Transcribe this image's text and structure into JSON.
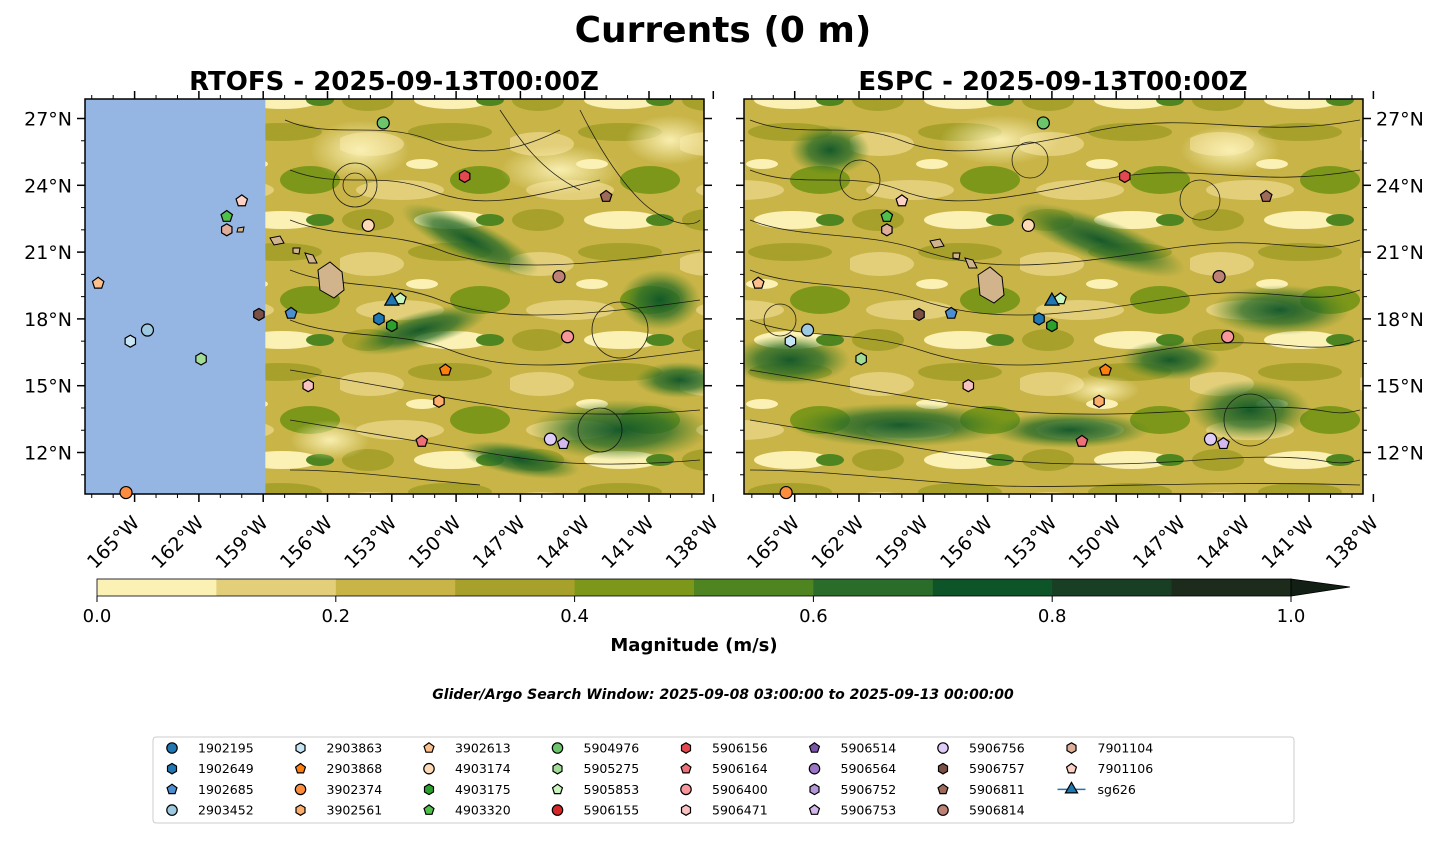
{
  "chart_data": {
    "type": "map",
    "title": "Currents (0 m)",
    "panels": [
      {
        "id": "rtofs",
        "title": "RTOFS - 2025-09-13T00:00Z"
      },
      {
        "id": "espc",
        "title": "ESPC - 2025-09-13T00:00Z"
      }
    ],
    "lon_range": [
      -168,
      -138
    ],
    "lat_range": [
      10,
      28
    ],
    "lat_ticks": [
      {
        "value": 27,
        "label": "27°N"
      },
      {
        "value": 24,
        "label": "24°N"
      },
      {
        "value": 21,
        "label": "21°N"
      },
      {
        "value": 18,
        "label": "18°N"
      },
      {
        "value": 15,
        "label": "15°N"
      },
      {
        "value": 12,
        "label": "12°N"
      }
    ],
    "lon_ticks": [
      {
        "value": -165,
        "label": "165°W"
      },
      {
        "value": -162,
        "label": "162°W"
      },
      {
        "value": -159,
        "label": "159°W"
      },
      {
        "value": -156,
        "label": "156°W"
      },
      {
        "value": -153,
        "label": "153°W"
      },
      {
        "value": -150,
        "label": "150°W"
      },
      {
        "value": -147,
        "label": "147°W"
      },
      {
        "value": -144,
        "label": "144°W"
      },
      {
        "value": -141,
        "label": "141°W"
      },
      {
        "value": -138,
        "label": "138°W"
      }
    ],
    "rtofs_data_west_edge_lon": -158.9,
    "colorbar": {
      "label": "Magnitude (m/s)",
      "range": [
        0.0,
        1.0
      ],
      "extend": "max",
      "ticks": [
        {
          "value": 0.0,
          "label": "0.0"
        },
        {
          "value": 0.2,
          "label": "0.2"
        },
        {
          "value": 0.4,
          "label": "0.4"
        },
        {
          "value": 0.6,
          "label": "0.6"
        },
        {
          "value": 0.8,
          "label": "0.8"
        },
        {
          "value": 1.0,
          "label": "1.0"
        }
      ],
      "colors": [
        "#fbf1b5",
        "#e3cf7a",
        "#c8b447",
        "#a7a12c",
        "#7d971a",
        "#4e8520",
        "#2a6d2a",
        "#0d5429",
        "#183e24",
        "#1c2b1c",
        "#111f14"
      ]
    },
    "search_window": "Glider/Argo Search Window: 2025-09-08 03:00:00 to 2025-09-13 00:00:00",
    "platforms": [
      {
        "id": "1902195",
        "marker": "circle",
        "color": "#1f77b4",
        "lon": null,
        "lat": null
      },
      {
        "id": "1902649",
        "marker": "hexagon",
        "color": "#1f77b4",
        "lon": -153.6,
        "lat": 18.0
      },
      {
        "id": "1902685",
        "marker": "pentagon",
        "color": "#4c8fd0",
        "lon": -157.7,
        "lat": 18.25
      },
      {
        "id": "2903452",
        "marker": "circle",
        "color": "#9ecae1",
        "lon": -164.4,
        "lat": 17.5
      },
      {
        "id": "2903863",
        "marker": "hexagon",
        "color": "#c6e5f5",
        "lon": -165.2,
        "lat": 17.0
      },
      {
        "id": "2903868",
        "marker": "pentagon",
        "color": "#ff7f0e",
        "lon": -150.5,
        "lat": 15.7
      },
      {
        "id": "3902374",
        "marker": "circle",
        "color": "#fd8d3c",
        "lon": -165.4,
        "lat": 10.2
      },
      {
        "id": "3902561",
        "marker": "hexagon",
        "color": "#fdae6b",
        "lon": -150.8,
        "lat": 14.3
      },
      {
        "id": "3902613",
        "marker": "pentagon",
        "color": "#fdc08c",
        "lon": -166.7,
        "lat": 19.6
      },
      {
        "id": "4903174",
        "marker": "circle",
        "color": "#fdd9b5",
        "lon": -154.1,
        "lat": 22.2
      },
      {
        "id": "4903175",
        "marker": "hexagon",
        "color": "#2ca02c",
        "lon": -153.0,
        "lat": 17.7
      },
      {
        "id": "4903320",
        "marker": "pentagon",
        "color": "#4fc04a",
        "lon": -160.7,
        "lat": 22.6
      },
      {
        "id": "5904976",
        "marker": "circle",
        "color": "#6cc56a",
        "lon": -153.4,
        "lat": 26.8
      },
      {
        "id": "5905275",
        "marker": "hexagon",
        "color": "#a1dd96",
        "lon": -161.9,
        "lat": 16.2
      },
      {
        "id": "5905853",
        "marker": "pentagon",
        "color": "#c9f5bf",
        "lon": -152.6,
        "lat": 18.9
      },
      {
        "id": "5906155",
        "marker": "circle",
        "color": "#d62728",
        "lon": null,
        "lat": null
      },
      {
        "id": "5906156",
        "marker": "hexagon",
        "color": "#e34850",
        "lon": -149.6,
        "lat": 24.4
      },
      {
        "id": "5906164",
        "marker": "pentagon",
        "color": "#f0707a",
        "lon": -151.6,
        "lat": 12.5
      },
      {
        "id": "5906400",
        "marker": "circle",
        "color": "#f7969b",
        "lon": -144.8,
        "lat": 17.2
      },
      {
        "id": "5906471",
        "marker": "hexagon",
        "color": "#f9c1c1",
        "lon": -156.9,
        "lat": 15.0
      },
      {
        "id": "5906514",
        "marker": "pentagon",
        "color": "#7a54a8",
        "lon": null,
        "lat": null
      },
      {
        "id": "5906564",
        "marker": "circle",
        "color": "#9c75c7",
        "lon": null,
        "lat": null
      },
      {
        "id": "5906752",
        "marker": "hexagon",
        "color": "#b497d6",
        "lon": null,
        "lat": null
      },
      {
        "id": "5906753",
        "marker": "pentagon",
        "color": "#d2b8ee",
        "lon": -145.0,
        "lat": 12.4
      },
      {
        "id": "5906756",
        "marker": "circle",
        "color": "#e0cdf7",
        "lon": -145.6,
        "lat": 12.6
      },
      {
        "id": "5906757",
        "marker": "hexagon",
        "color": "#7a5044",
        "lon": -159.2,
        "lat": 18.2
      },
      {
        "id": "5906811",
        "marker": "pentagon",
        "color": "#a06a5a",
        "lon": -143.0,
        "lat": 23.5
      },
      {
        "id": "5906814",
        "marker": "circle",
        "color": "#bd8176",
        "lon": -145.2,
        "lat": 19.9
      },
      {
        "id": "7901104",
        "marker": "hexagon",
        "color": "#deae9b",
        "lon": -160.7,
        "lat": 22.0
      },
      {
        "id": "7901106",
        "marker": "pentagon",
        "color": "#fdd1c4",
        "lon": -160.0,
        "lat": 23.3
      },
      {
        "id": "sg626",
        "marker": "triangle",
        "color": "#1f77b4",
        "lon": -153.0,
        "lat": 18.8
      }
    ]
  }
}
